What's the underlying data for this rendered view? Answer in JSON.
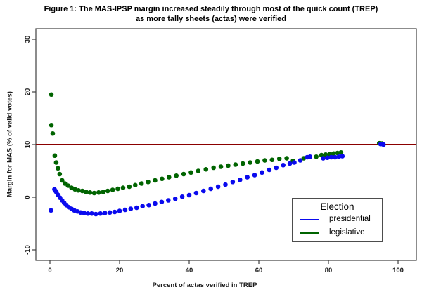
{
  "figure": {
    "title_line1": "Figure 1: The MAS-IPSP margin increased steadily through most of the quick count (TREP)",
    "title_line2": "as more tally sheets (actas) were verified"
  },
  "axes": {
    "x_label": "Percent of actas verified in TREP",
    "y_label": "Margin for MAS (% of valid votes)",
    "x_ticks": [
      0,
      20,
      40,
      60,
      80,
      100
    ],
    "y_ticks": [
      -10,
      0,
      10,
      20,
      30
    ]
  },
  "legend": {
    "title": "Election",
    "items": [
      {
        "label": "presidential",
        "color": "#0A0AEE"
      },
      {
        "label": "legislative",
        "color": "#006400"
      }
    ]
  },
  "chart_data": {
    "type": "scatter",
    "title": "Figure 1: The MAS-IPSP margin increased steadily through most of the quick count (TREP) as more tally sheets (actas) were verified",
    "xlabel": "Percent of actas verified in TREP",
    "ylabel": "Margin for MAS (% of valid votes)",
    "xlim": [
      -4.04,
      105.25
    ],
    "ylim": [
      -12,
      32
    ],
    "grid": false,
    "legend_position": "bottom-right",
    "reference_line": {
      "y": 10,
      "color": "#8B0000"
    },
    "point_radius": 3.3,
    "colors": {
      "presidential": "#0A0AEE",
      "legislative": "#006400",
      "reference": "#8B0000"
    },
    "series": [
      {
        "name": "legislative",
        "color": "#006400",
        "points": [
          [
            0.4,
            19.5
          ],
          [
            0.4,
            13.7
          ],
          [
            0.8,
            12.1
          ],
          [
            1.4,
            7.9
          ],
          [
            1.8,
            6.6
          ],
          [
            2.3,
            5.5
          ],
          [
            2.8,
            4.4
          ],
          [
            3.5,
            3.2
          ],
          [
            4.3,
            2.6
          ],
          [
            5.2,
            2.2
          ],
          [
            6.2,
            1.8
          ],
          [
            7.2,
            1.5
          ],
          [
            8.2,
            1.3
          ],
          [
            9.3,
            1.2
          ],
          [
            10.4,
            1.0
          ],
          [
            11.5,
            0.9
          ],
          [
            12.7,
            0.8
          ],
          [
            14.0,
            0.9
          ],
          [
            15.3,
            1.0
          ],
          [
            16.6,
            1.2
          ],
          [
            18.0,
            1.4
          ],
          [
            19.5,
            1.6
          ],
          [
            21.0,
            1.8
          ],
          [
            22.8,
            2.0
          ],
          [
            24.5,
            2.3
          ],
          [
            26.3,
            2.6
          ],
          [
            28.2,
            2.9
          ],
          [
            30.2,
            3.2
          ],
          [
            32.2,
            3.5
          ],
          [
            34.2,
            3.8
          ],
          [
            36.3,
            4.1
          ],
          [
            38.4,
            4.4
          ],
          [
            40.5,
            4.7
          ],
          [
            42.6,
            5.0
          ],
          [
            44.8,
            5.3
          ],
          [
            47.0,
            5.6
          ],
          [
            49.1,
            5.8
          ],
          [
            51.2,
            6.0
          ],
          [
            53.3,
            6.2
          ],
          [
            55.4,
            6.4
          ],
          [
            57.5,
            6.6
          ],
          [
            59.6,
            6.8
          ],
          [
            61.7,
            7.0
          ],
          [
            63.8,
            7.1
          ],
          [
            65.9,
            7.3
          ],
          [
            68.0,
            7.4
          ],
          [
            69.8,
            6.9
          ],
          [
            72.9,
            7.4
          ],
          [
            76.5,
            7.7
          ],
          [
            78.0,
            8.0
          ],
          [
            79.2,
            8.1
          ],
          [
            80.4,
            8.2
          ],
          [
            81.5,
            8.3
          ],
          [
            82.6,
            8.4
          ],
          [
            83.6,
            8.5
          ],
          [
            94.6,
            10.25
          ],
          [
            95.4,
            10.2
          ]
        ]
      },
      {
        "name": "presidential",
        "color": "#0A0AEE",
        "points": [
          [
            0.3,
            -2.5
          ],
          [
            1.3,
            1.5
          ],
          [
            1.6,
            1.2
          ],
          [
            1.9,
            0.9
          ],
          [
            2.4,
            0.4
          ],
          [
            2.9,
            -0.1
          ],
          [
            3.5,
            -0.6
          ],
          [
            4.1,
            -1.1
          ],
          [
            4.7,
            -1.5
          ],
          [
            5.4,
            -1.9
          ],
          [
            6.2,
            -2.2
          ],
          [
            7.0,
            -2.5
          ],
          [
            7.9,
            -2.7
          ],
          [
            8.8,
            -2.9
          ],
          [
            9.8,
            -3.0
          ],
          [
            10.9,
            -3.1
          ],
          [
            12.0,
            -3.1
          ],
          [
            13.2,
            -3.2
          ],
          [
            14.5,
            -3.1
          ],
          [
            15.8,
            -3.0
          ],
          [
            17.2,
            -2.9
          ],
          [
            18.6,
            -2.8
          ],
          [
            20.0,
            -2.6
          ],
          [
            21.6,
            -2.4
          ],
          [
            23.2,
            -2.2
          ],
          [
            24.9,
            -2.0
          ],
          [
            26.6,
            -1.7
          ],
          [
            28.4,
            -1.5
          ],
          [
            30.2,
            -1.2
          ],
          [
            32.1,
            -0.9
          ],
          [
            34.0,
            -0.6
          ],
          [
            36.0,
            -0.3
          ],
          [
            38.0,
            0.1
          ],
          [
            40.0,
            0.4
          ],
          [
            42.0,
            0.8
          ],
          [
            44.1,
            1.2
          ],
          [
            46.2,
            1.6
          ],
          [
            48.3,
            2.0
          ],
          [
            50.4,
            2.4
          ],
          [
            52.5,
            2.9
          ],
          [
            54.6,
            3.3
          ],
          [
            56.7,
            3.8
          ],
          [
            58.8,
            4.2
          ],
          [
            60.9,
            4.7
          ],
          [
            63.0,
            5.2
          ],
          [
            65.0,
            5.6
          ],
          [
            67.0,
            6.1
          ],
          [
            68.9,
            6.4
          ],
          [
            70.2,
            6.6
          ],
          [
            71.9,
            7.0
          ],
          [
            73.9,
            7.6
          ],
          [
            74.7,
            7.7
          ],
          [
            78.5,
            7.4
          ],
          [
            79.7,
            7.5
          ],
          [
            80.8,
            7.6
          ],
          [
            81.9,
            7.6
          ],
          [
            83.0,
            7.7
          ],
          [
            84.0,
            7.8
          ],
          [
            95.0,
            10.1
          ],
          [
            95.8,
            10.0
          ]
        ]
      }
    ]
  }
}
